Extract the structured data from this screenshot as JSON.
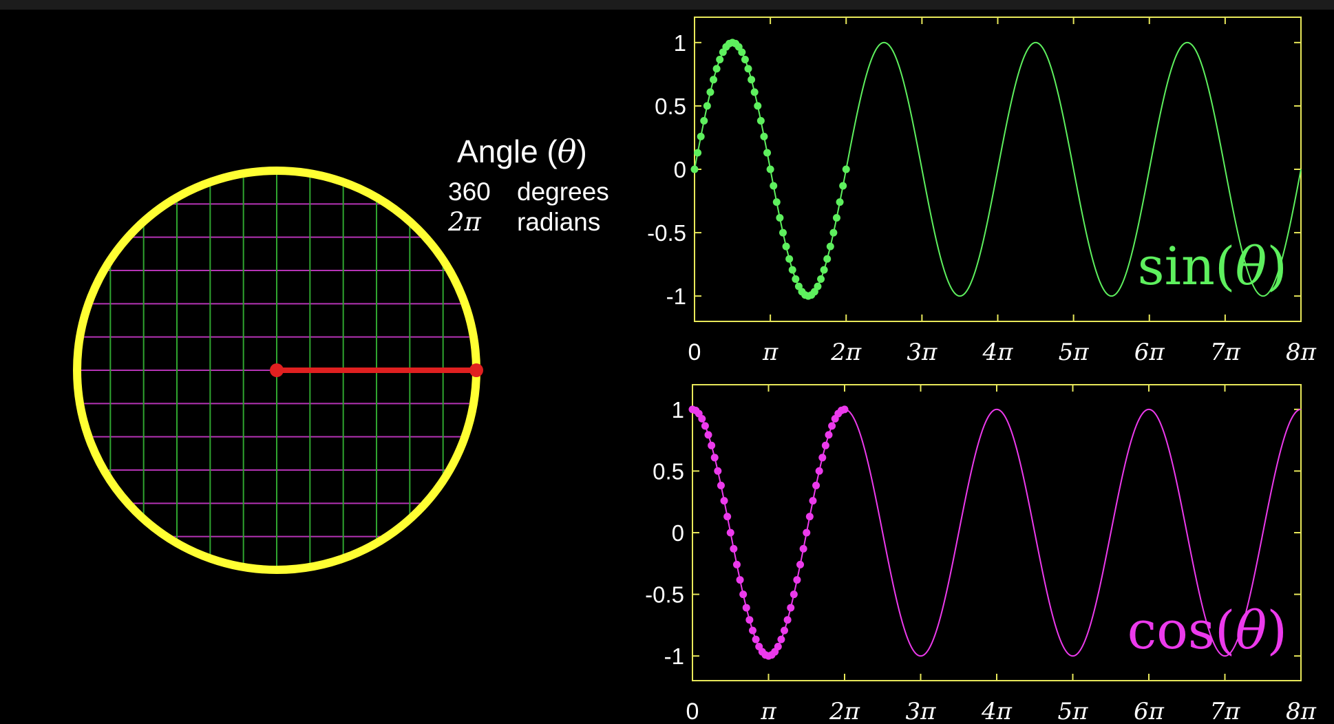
{
  "readout": {
    "title_prefix": "Angle (",
    "theta": "θ",
    "title_suffix": ")",
    "degrees_value": "360",
    "degrees_unit": "degrees",
    "radians_value": "2π",
    "radians_unit": "radians"
  },
  "colors": {
    "background": "#000000",
    "axes": "#e8e85a",
    "circle_ring": "#ffff33",
    "grid_green": "#2fa52f",
    "grid_magenta": "#b533b5",
    "radius_line": "#e02020",
    "sin_color": "#5ef05e",
    "cos_color": "#ec3aec"
  },
  "unit_circle": {
    "angle_deg": 0,
    "grid_divisions": 12
  },
  "chart_data": [
    {
      "type": "line",
      "function": "sin",
      "label": "sin(θ)",
      "label_prefix": "sin(",
      "label_theta": "θ",
      "label_suffix": ")",
      "xlim_pi": [
        0,
        8
      ],
      "ylim": [
        -1.2,
        1.2
      ],
      "yticks": [
        1,
        0.5,
        0,
        -0.5,
        -1
      ],
      "ytick_labels": [
        "1",
        "0.5",
        "0",
        "-0.5",
        "-1"
      ],
      "xtick_labels": [
        "0",
        "π",
        "2π",
        "3π",
        "4π",
        "5π",
        "6π",
        "7π",
        "8π"
      ],
      "traced_until_pi": 2,
      "sample_points": 48,
      "color": "#5ef05e"
    },
    {
      "type": "line",
      "function": "cos",
      "label": "cos(θ)",
      "label_prefix": "cos(",
      "label_theta": "θ",
      "label_suffix": ")",
      "xlim_pi": [
        0,
        8
      ],
      "ylim": [
        -1.2,
        1.2
      ],
      "yticks": [
        1,
        0.5,
        0,
        -0.5,
        -1
      ],
      "ytick_labels": [
        "1",
        "0.5",
        "0",
        "-0.5",
        "-1"
      ],
      "xtick_labels": [
        "0",
        "π",
        "2π",
        "3π",
        "4π",
        "5π",
        "6π",
        "7π",
        "8π"
      ],
      "traced_until_pi": 2,
      "sample_points": 48,
      "color": "#ec3aec"
    }
  ]
}
